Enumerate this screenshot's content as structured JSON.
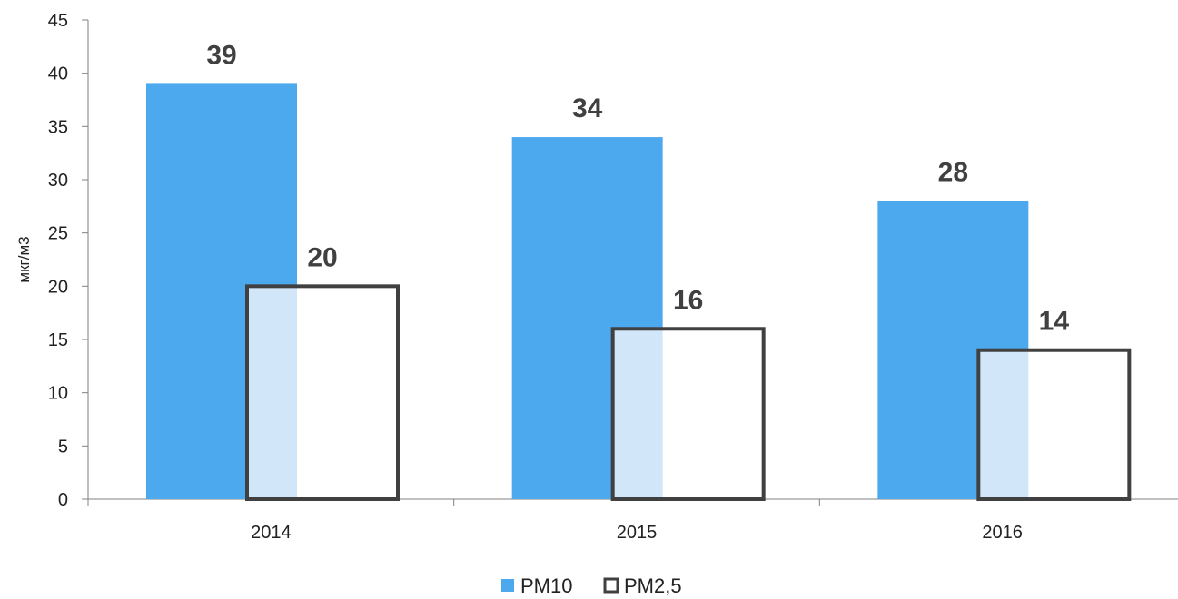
{
  "chart_data": {
    "type": "bar",
    "categories": [
      "2014",
      "2015",
      "2016"
    ],
    "series": [
      {
        "name": "PM10",
        "values": [
          39,
          34,
          28
        ],
        "color": "#4DA9ED"
      },
      {
        "name": "PM2,5",
        "values": [
          20,
          16,
          14
        ],
        "color": "#FFFFFF",
        "stroke": "#404040",
        "overlap_fill": "#D1E7F9"
      }
    ],
    "title": "",
    "xlabel": "",
    "ylabel": "мкг/м3",
    "ylim": [
      0,
      45
    ],
    "yticks": [
      0,
      5,
      10,
      15,
      20,
      25,
      30,
      35,
      40,
      45
    ],
    "grid": false,
    "legend_position": "bottom",
    "data_labels": true,
    "axis_color": "#808080"
  }
}
